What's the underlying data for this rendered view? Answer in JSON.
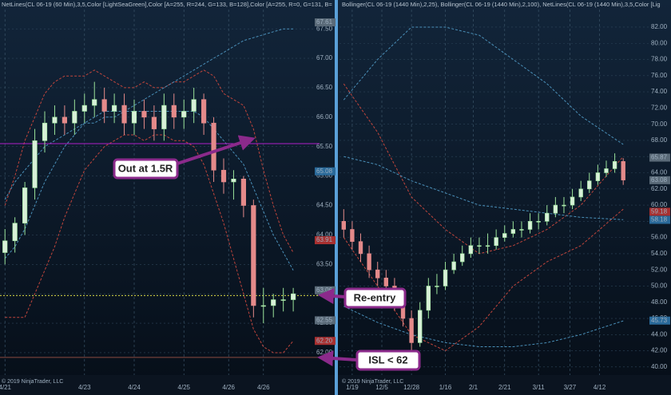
{
  "chart_data": [
    {
      "type": "candlestick",
      "header": "NetLines(CL 06-19 (60 Min),3,5,Color [LightSeaGreen],Color [A=255, R=244, G=133, B=128],Color [A=255, R=0, G=131, B=",
      "copyright": "© 2019 NinjaTrader, LLC",
      "xlim": [
        -0.5,
        31
      ],
      "ylim": [
        61.62,
        67.99
      ],
      "yticks": [
        {
          "value": 62,
          "label": "62.00"
        },
        {
          "value": 62.5,
          "label": "62.50"
        },
        {
          "value": 63,
          "label": "63.00"
        },
        {
          "value": 63.5,
          "label": "63.50"
        },
        {
          "value": 64,
          "label": "64.00"
        },
        {
          "value": 64.5,
          "label": "64.50"
        },
        {
          "value": 65,
          "label": "65.00"
        },
        {
          "value": 65.5,
          "label": "65.50"
        },
        {
          "value": 66,
          "label": "66.00"
        },
        {
          "value": 66.5,
          "label": "66.50"
        },
        {
          "value": 67,
          "label": "67.00"
        },
        {
          "value": 67.5,
          "label": "67.50"
        }
      ],
      "xticks": [
        {
          "value": 0,
          "label": "4/21"
        },
        {
          "value": 8,
          "label": "4/23"
        },
        {
          "value": 13,
          "label": "4/24"
        },
        {
          "value": 18,
          "label": "4/25"
        },
        {
          "value": 22.5,
          "label": "4/26"
        },
        {
          "value": 26,
          "label": "4/26"
        }
      ],
      "up_color": "#9be39b",
      "down_color": "#e48a8a",
      "open": [
        63.7,
        63.9,
        64.2,
        64.8,
        65.6,
        65.9,
        66,
        65.9,
        66.1,
        66.2,
        66.3,
        66.1,
        66.2,
        65.9,
        66.1,
        66,
        65.8,
        66.2,
        66,
        66.1,
        66.3,
        65.9,
        65.1,
        64.9,
        64.95,
        64.5,
        62.8,
        62.8,
        62.9,
        62.9
      ],
      "high": [
        64.1,
        64.3,
        64.9,
        65.8,
        66.1,
        66.2,
        66.2,
        66.3,
        66.4,
        66.6,
        66.5,
        66.4,
        66.4,
        66.3,
        66.3,
        66.2,
        66.4,
        66.4,
        66.3,
        66.5,
        66.4,
        66,
        65.3,
        65.1,
        65,
        64.6,
        63.1,
        63,
        63.1,
        63.1
      ],
      "low": [
        63.5,
        63.7,
        64,
        64.6,
        65.4,
        65.7,
        65.7,
        65.7,
        65.9,
        66,
        65.9,
        65.9,
        65.7,
        65.7,
        65.8,
        65.6,
        65.6,
        65.8,
        65.8,
        65.9,
        65.7,
        64.9,
        64.7,
        64.6,
        64.3,
        62.6,
        62.5,
        62.6,
        62.7,
        62.7
      ],
      "close": [
        63.9,
        64.2,
        64.8,
        65.6,
        65.9,
        66,
        65.9,
        66.1,
        66.2,
        66.3,
        66.1,
        66.2,
        65.9,
        66.1,
        66,
        65.8,
        66.2,
        66,
        66.1,
        66.3,
        65.9,
        65.1,
        64.9,
        64.95,
        64.5,
        62.8,
        62.8,
        62.9,
        62.9,
        63
      ],
      "bands": [
        {
          "color": "#c0453c",
          "values": [
            64.5,
            65,
            65.6,
            66,
            66.4,
            66.6,
            66.7,
            66.7,
            66.7,
            66.8,
            66.7,
            66.6,
            66.5,
            66.5,
            66.6,
            66.5,
            66.5,
            66.6,
            66.6,
            66.7,
            66.8,
            66.7,
            66.4,
            66.3,
            66.2,
            65.8,
            65.1,
            64.5,
            64,
            63.7
          ]
        },
        {
          "color": "#c0453c",
          "values": [
            62.6,
            62.6,
            62.6,
            63,
            63.4,
            63.8,
            64.3,
            64.7,
            65.1,
            65.3,
            65.5,
            65.6,
            65.7,
            65.7,
            65.6,
            65.7,
            65.7,
            65.6,
            65.6,
            65.5,
            65.2,
            64.7,
            64.2,
            63.6,
            63,
            62.4,
            62.1,
            62,
            62,
            62.2
          ]
        },
        {
          "color": "#4a8fb8",
          "values": [
            64.6,
            64.9,
            65.1,
            65.3,
            65.5,
            65.6,
            65.7,
            65.8,
            65.9,
            65.9,
            66,
            66,
            66.1,
            66.2,
            66.3,
            66.4,
            66.5,
            66.6,
            66.7,
            66.8,
            66.9,
            67,
            67.1,
            67.2,
            67.3,
            67.35,
            67.4,
            67.45,
            67.5,
            67.5
          ]
        },
        {
          "color": "#4a8fb8",
          "values": [
            63.6,
            63.8,
            64.1,
            64.5,
            64.9,
            65.2,
            65.5,
            65.7,
            65.9,
            66,
            66.1,
            66.1,
            66.1,
            66.1,
            66.1,
            66.1,
            66.1,
            66.1,
            66.1,
            66.1,
            66,
            65.8,
            65.6,
            65.4,
            65.2,
            64.8,
            64.4,
            64,
            63.7,
            63.4
          ]
        }
      ],
      "levels": [
        {
          "value": 65.55,
          "color": "#b020c8"
        },
        {
          "value": 62.97,
          "color": "#d8d848"
        },
        {
          "value": 61.92,
          "color": "#8a4a40"
        }
      ],
      "markers": [
        {
          "value": 67.61,
          "color": "#5a6a78"
        },
        {
          "value": 65.08,
          "color": "#2a6a9a"
        },
        {
          "value": 63.91,
          "color": "#a83030"
        },
        {
          "value": 63.06,
          "color": "#5a6a78"
        },
        {
          "value": 62.55,
          "color": "#5a6a78"
        },
        {
          "value": 62.2,
          "label": "62.20",
          "color": "#a83030"
        }
      ]
    },
    {
      "type": "candlestick",
      "header": "Bollinger(CL 06-19 (1440 Min),2,25), Bollinger(CL 06-19 (1440 Min),2,100), NetLines(CL 06-19 (1440 Min),3,5,Color [Lig",
      "copyright": "© 2019 NinjaTrader, LLC",
      "xlim": [
        -0.5,
        36
      ],
      "ylim": [
        39,
        85.35
      ],
      "yticks": [
        {
          "value": 40,
          "label": "40.00"
        },
        {
          "value": 42,
          "label": "42.00"
        },
        {
          "value": 44,
          "label": "44.00"
        },
        {
          "value": 46,
          "label": "46.00"
        },
        {
          "value": 48,
          "label": "48.00"
        },
        {
          "value": 50,
          "label": "50.00"
        },
        {
          "value": 52,
          "label": "52.00"
        },
        {
          "value": 54,
          "label": "54.00"
        },
        {
          "value": 56,
          "label": "56.00"
        },
        {
          "value": 58,
          "label": "58.00"
        },
        {
          "value": 60,
          "label": "60.00"
        },
        {
          "value": 62,
          "label": "62.00"
        },
        {
          "value": 64,
          "label": "64.00"
        },
        {
          "value": 66,
          "label": "66.00"
        },
        {
          "value": 68,
          "label": "68.00"
        },
        {
          "value": 70,
          "label": "70.00"
        },
        {
          "value": 72,
          "label": "72.00"
        },
        {
          "value": 74,
          "label": "74.00"
        },
        {
          "value": 76,
          "label": "76.00"
        },
        {
          "value": 78,
          "label": "78.00"
        },
        {
          "value": 80,
          "label": "80.00"
        },
        {
          "value": 82,
          "label": "82.00"
        }
      ],
      "xticks": [
        {
          "value": 1,
          "label": "1/19"
        },
        {
          "value": 4.5,
          "label": "12/5"
        },
        {
          "value": 8,
          "label": "12/28"
        },
        {
          "value": 12,
          "label": "1/16"
        },
        {
          "value": 15.3,
          "label": "2/1"
        },
        {
          "value": 19,
          "label": "2/21"
        },
        {
          "value": 23,
          "label": "3/11"
        },
        {
          "value": 26.7,
          "label": "3/27"
        },
        {
          "value": 30.2,
          "label": "4/12"
        }
      ],
      "up_color": "#9be39b",
      "down_color": "#e48a8a",
      "open": [
        58,
        57,
        55.5,
        54,
        52,
        51,
        50,
        48,
        46,
        43,
        47,
        50,
        50,
        52,
        53,
        54,
        55,
        55,
        55,
        56,
        56.5,
        57,
        57,
        58,
        58,
        59,
        60,
        60,
        61,
        62,
        63,
        64,
        64.5,
        65.4
      ],
      "high": [
        59.5,
        58,
        56.5,
        55,
        53,
        52,
        51,
        49,
        47,
        48,
        51,
        51.5,
        53,
        54,
        55,
        56,
        56,
        56.5,
        57,
        57.5,
        58,
        58,
        59,
        59,
        60,
        61,
        61,
        62,
        63,
        64,
        65,
        65.5,
        66.4,
        65.8
      ],
      "low": [
        56,
        54.5,
        53,
        51,
        50,
        49,
        47,
        45,
        42,
        42.5,
        46,
        49,
        49.5,
        51.5,
        52.5,
        53.5,
        54,
        54,
        54.5,
        55.5,
        56,
        56,
        56.5,
        57,
        57.5,
        58.5,
        59,
        59.5,
        60.5,
        61.5,
        62.5,
        63.5,
        64,
        62.5
      ],
      "close": [
        57,
        55.5,
        54,
        52,
        51,
        50,
        48,
        46,
        43,
        47,
        50,
        50,
        52,
        53,
        54,
        55,
        55,
        55,
        56,
        56.5,
        57,
        57,
        58,
        58,
        59,
        60,
        60,
        61,
        62,
        63,
        64,
        64.5,
        65.4,
        63.1
      ],
      "bands": [
        {
          "color": "#c0453c",
          "x": [
            0,
            4,
            8,
            12,
            16,
            20,
            24,
            28,
            33
          ],
          "values": [
            75,
            69,
            61,
            57,
            54,
            55,
            57,
            60,
            66
          ]
        },
        {
          "color": "#c0453c",
          "x": [
            0,
            4,
            8,
            12,
            16,
            20,
            24,
            28,
            33
          ],
          "values": [
            56,
            50,
            44,
            42,
            45,
            50,
            53,
            55,
            59.5
          ]
        },
        {
          "color": "#4a8fb8",
          "x": [
            0,
            4,
            8,
            12,
            16,
            20,
            24,
            28,
            33
          ],
          "values": [
            73,
            78,
            82,
            82,
            81,
            78,
            75,
            71,
            67.5
          ]
        },
        {
          "color": "#4a8fb8",
          "x": [
            0,
            4,
            8,
            12,
            16,
            20,
            24,
            28,
            33
          ],
          "values": [
            66,
            65,
            63,
            61.5,
            60,
            59.5,
            59,
            58.5,
            58.2
          ]
        },
        {
          "color": "#4a8fb8",
          "x": [
            0,
            4,
            8,
            12,
            16,
            20,
            24,
            28,
            33
          ],
          "values": [
            47.5,
            45.5,
            44,
            43,
            42.5,
            42.5,
            43,
            44,
            45.7
          ]
        }
      ],
      "levels": [],
      "markers": [
        {
          "value": 65.87,
          "color": "#5a6a78"
        },
        {
          "value": 63.08,
          "color": "#5a6a78"
        },
        {
          "value": 59.18,
          "color": "#a83030"
        },
        {
          "value": 58.18,
          "color": "#2a6a9a"
        },
        {
          "value": 45.73,
          "color": "#2a6a9a"
        }
      ]
    }
  ],
  "annotations": [
    {
      "text": "Out at 1.5R"
    },
    {
      "text": "Re-entry"
    },
    {
      "text": "ISL < 62"
    }
  ]
}
